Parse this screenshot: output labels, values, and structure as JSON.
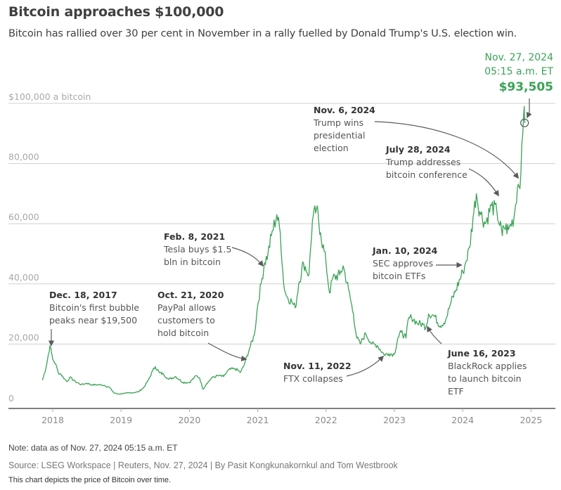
{
  "chart_data": {
    "type": "line",
    "title": "Bitcoin approaches $100,000",
    "subtitle": "Bitcoin has rallied over 30 per cent in November in a rally fuelled by Donald Trump's U.S. election win.",
    "xlabel": "",
    "ylabel": "$100,000 a bitcoin",
    "ylim": [
      0,
      100000
    ],
    "xlim": [
      2017.85,
      2025.0
    ],
    "grid": true,
    "y_ticks": [
      {
        "value": 0,
        "label": "0"
      },
      {
        "value": 20000,
        "label": "20,000"
      },
      {
        "value": 40000,
        "label": "40,000"
      },
      {
        "value": 60000,
        "label": "60,000"
      },
      {
        "value": 80000,
        "label": "80,000"
      },
      {
        "value": 100000,
        "label": "$100,000 a bitcoin"
      }
    ],
    "x_ticks": [
      {
        "value": 2018,
        "label": "2018"
      },
      {
        "value": 2019,
        "label": "2019"
      },
      {
        "value": 2020,
        "label": "2020"
      },
      {
        "value": 2021,
        "label": "2021"
      },
      {
        "value": 2022,
        "label": "2022"
      },
      {
        "value": 2023,
        "label": "2023"
      },
      {
        "value": 2024,
        "label": "2024"
      },
      {
        "value": 2025,
        "label": "2025"
      }
    ],
    "series": [
      {
        "name": "Bitcoin price (USD)",
        "color": "#3aa355",
        "x": [
          2017.85,
          2017.9,
          2017.96,
          2018.0,
          2018.04,
          2018.08,
          2018.12,
          2018.17,
          2018.21,
          2018.25,
          2018.33,
          2018.42,
          2018.5,
          2018.58,
          2018.67,
          2018.75,
          2018.83,
          2018.9,
          2018.96,
          2019.05,
          2019.15,
          2019.25,
          2019.33,
          2019.4,
          2019.46,
          2019.5,
          2019.56,
          2019.62,
          2019.7,
          2019.8,
          2019.9,
          2020.0,
          2020.1,
          2020.15,
          2020.2,
          2020.25,
          2020.33,
          2020.42,
          2020.5,
          2020.58,
          2020.67,
          2020.75,
          2020.8,
          2020.88,
          2020.95,
          2021.0,
          2021.05,
          2021.1,
          2021.15,
          2021.2,
          2021.28,
          2021.33,
          2021.38,
          2021.42,
          2021.5,
          2021.55,
          2021.6,
          2021.67,
          2021.75,
          2021.8,
          2021.86,
          2021.92,
          2022.0,
          2022.05,
          2022.1,
          2022.2,
          2022.25,
          2022.33,
          2022.4,
          2022.45,
          2022.5,
          2022.58,
          2022.67,
          2022.75,
          2022.85,
          2022.92,
          2023.0,
          2023.05,
          2023.1,
          2023.17,
          2023.2,
          2023.25,
          2023.33,
          2023.42,
          2023.46,
          2023.5,
          2023.58,
          2023.67,
          2023.75,
          2023.83,
          2023.9,
          2024.0,
          2024.03,
          2024.1,
          2024.15,
          2024.2,
          2024.25,
          2024.33,
          2024.42,
          2024.5,
          2024.58,
          2024.6,
          2024.67,
          2024.75,
          2024.8,
          2024.85,
          2024.88,
          2024.9,
          2024.91
        ],
        "values": [
          8000,
          12000,
          19500,
          15000,
          13500,
          10500,
          10000,
          8500,
          7500,
          9000,
          7500,
          6500,
          7000,
          6400,
          6500,
          6300,
          5600,
          3700,
          3400,
          3600,
          3800,
          4100,
          5500,
          8000,
          11000,
          12500,
          10500,
          10000,
          8300,
          9200,
          7300,
          7200,
          9500,
          8700,
          5000,
          6800,
          8800,
          9500,
          9200,
          11500,
          11800,
          10600,
          13000,
          18500,
          23000,
          33000,
          40000,
          47000,
          50000,
          56000,
          63000,
          57000,
          40000,
          36000,
          34000,
          32000,
          40000,
          47000,
          43000,
          61000,
          65000,
          57000,
          47000,
          37000,
          42000,
          43000,
          46000,
          38000,
          30000,
          22000,
          20000,
          23500,
          20000,
          19500,
          16500,
          16800,
          16600,
          22000,
          24000,
          22000,
          28000,
          29000,
          27000,
          26500,
          25500,
          30000,
          29500,
          26000,
          28000,
          34000,
          38000,
          44000,
          46000,
          52000,
          62000,
          70000,
          64000,
          60000,
          66000,
          64000,
          56000,
          59000,
          58000,
          62000,
          72000,
          76000,
          90000,
          99000,
          93505
        ]
      }
    ],
    "latest": {
      "date": "Nov. 27, 2024",
      "time": "05:15 a.m. ET",
      "value_label": "$93,505",
      "x": 2024.905,
      "value": 93505
    },
    "annotations": [
      {
        "date": "Dec. 18, 2017",
        "lines": [
          "Bitcoin's first bubble",
          "peaks near $19,500"
        ],
        "x": 2017.96,
        "value": 19500
      },
      {
        "date": "Oct. 21, 2020",
        "lines": [
          "PayPal allows",
          "customers to",
          "hold bitcoin"
        ],
        "x": 2020.8,
        "value": 12800
      },
      {
        "date": "Feb. 8, 2021",
        "lines": [
          "Tesla buys $1.5",
          "bln in bitcoin"
        ],
        "x": 2021.1,
        "value": 46000
      },
      {
        "date": "Nov. 11, 2022",
        "lines": [
          "FTX collapses"
        ],
        "x": 2022.86,
        "value": 16500
      },
      {
        "date": "June 16, 2023",
        "lines": [
          "BlackRock applies",
          "to launch bitcoin",
          "ETF"
        ],
        "x": 2023.46,
        "value": 25500
      },
      {
        "date": "Jan. 10, 2024",
        "lines": [
          "SEC approves",
          "bitcoin ETFs"
        ],
        "x": 2024.03,
        "value": 46000
      },
      {
        "date": "July 28, 2024",
        "lines": [
          "Trump addresses",
          "bitcoin conference"
        ],
        "x": 2024.57,
        "value": 68000
      },
      {
        "date": "Nov. 6, 2024",
        "lines": [
          "Trump wins",
          "presidential",
          "election"
        ],
        "x": 2024.85,
        "value": 75000
      }
    ]
  },
  "footer": {
    "note": "Note: data as of Nov. 27, 2024 05:15 a.m. ET",
    "source": "Source: LSEG Workspace | Reuters, Nov. 27, 2024 | By Pasit Kongkunakornkul and Tom Westbrook",
    "description": "This chart depicts the price of Bitcoin over time."
  }
}
